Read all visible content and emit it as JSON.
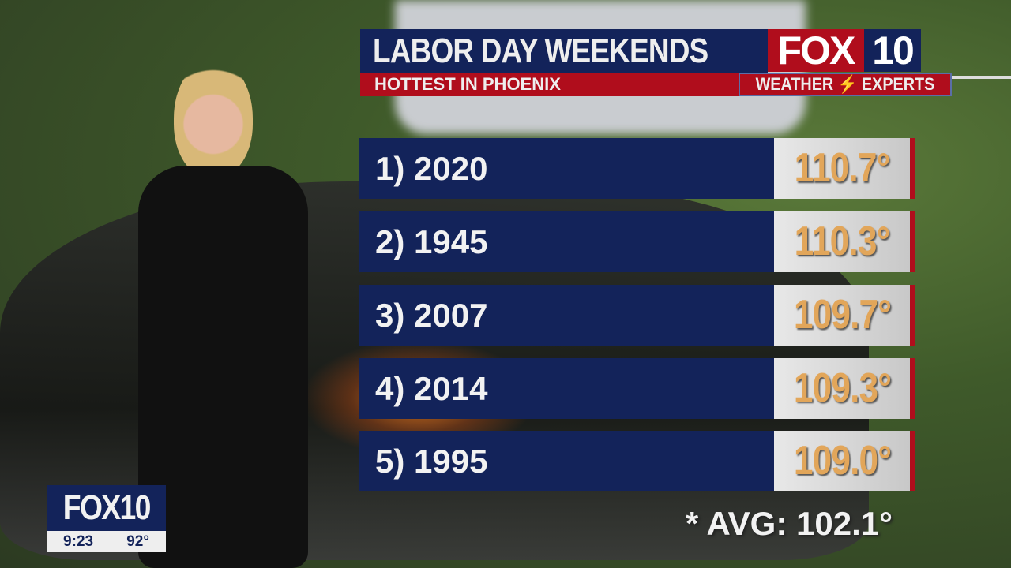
{
  "header": {
    "title": "LABOR DAY WEEKENDS",
    "subtitle": "HOTTEST IN PHOENIX"
  },
  "logo": {
    "fox": "FOX",
    "number": "10",
    "tagline": "WEATHER",
    "tagline2": "EXPERTS"
  },
  "rankings": [
    {
      "label": "1) 2020",
      "value": "110.7°"
    },
    {
      "label": "2) 1945",
      "value": "110.3°"
    },
    {
      "label": "3) 2007",
      "value": "109.7°"
    },
    {
      "label": "4) 2014",
      "value": "109.3°"
    },
    {
      "label": "5) 1995",
      "value": "109.0°"
    }
  ],
  "average": "* AVG: 102.1°",
  "bug": {
    "logo": "FOX10",
    "time": "9:23",
    "temp": "92°"
  },
  "colors": {
    "navy": "#13235a",
    "red": "#b00d1c",
    "value_text": "#e2a65a"
  }
}
